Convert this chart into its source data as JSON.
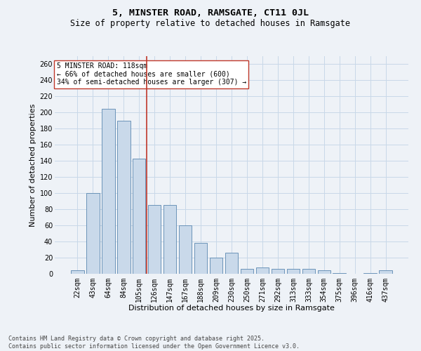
{
  "title_line1": "5, MINSTER ROAD, RAMSGATE, CT11 0JL",
  "title_line2": "Size of property relative to detached houses in Ramsgate",
  "xlabel": "Distribution of detached houses by size in Ramsgate",
  "ylabel": "Number of detached properties",
  "categories": [
    "22sqm",
    "43sqm",
    "64sqm",
    "84sqm",
    "105sqm",
    "126sqm",
    "147sqm",
    "167sqm",
    "188sqm",
    "209sqm",
    "230sqm",
    "250sqm",
    "271sqm",
    "292sqm",
    "313sqm",
    "333sqm",
    "354sqm",
    "375sqm",
    "396sqm",
    "416sqm",
    "437sqm"
  ],
  "values": [
    4,
    100,
    205,
    190,
    143,
    85,
    85,
    60,
    38,
    20,
    26,
    6,
    8,
    6,
    6,
    6,
    4,
    1,
    0,
    1,
    4
  ],
  "bar_color": "#c9d9ea",
  "bar_edge_color": "#5a87b0",
  "vline_x_index": 4.5,
  "vline_color": "#c0392b",
  "annotation_line1": "5 MINSTER ROAD: 118sqm",
  "annotation_line2": "← 66% of detached houses are smaller (600)",
  "annotation_line3": "34% of semi-detached houses are larger (307) →",
  "annotation_box_color": "#ffffff",
  "annotation_box_edge": "#c0392b",
  "ylim": [
    0,
    270
  ],
  "yticks": [
    0,
    20,
    40,
    60,
    80,
    100,
    120,
    140,
    160,
    180,
    200,
    220,
    240,
    260
  ],
  "grid_color": "#c8d8e8",
  "background_color": "#eef2f7",
  "footer_line1": "Contains HM Land Registry data © Crown copyright and database right 2025.",
  "footer_line2": "Contains public sector information licensed under the Open Government Licence v3.0.",
  "title_fontsize": 9.5,
  "subtitle_fontsize": 8.5,
  "axis_label_fontsize": 8,
  "tick_fontsize": 7,
  "annotation_fontsize": 7,
  "footer_fontsize": 6
}
